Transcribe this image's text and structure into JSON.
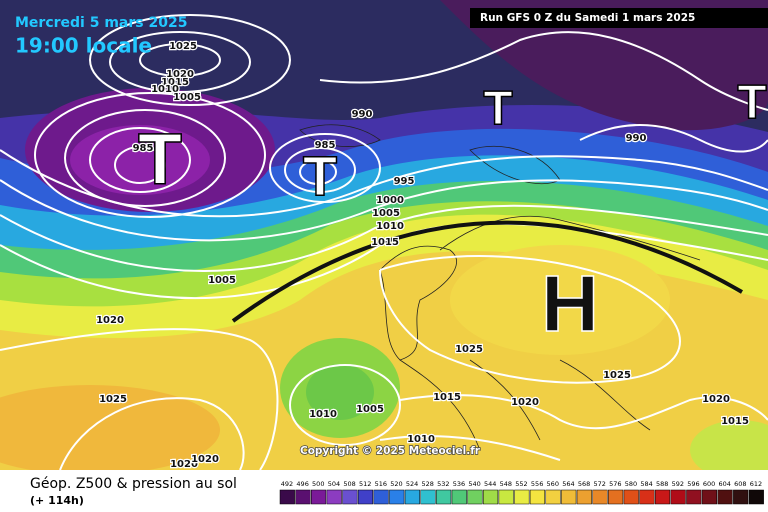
{
  "header": {
    "date": "Mercredi 5 mars 2025",
    "time": "19:00 locale",
    "run": "Run GFS 0 Z du Samedi 1 mars 2025"
  },
  "map": {
    "isobar_labels": [
      "1025",
      "1020",
      "1015",
      "1010",
      "1005",
      "990",
      "985",
      "985",
      "995",
      "1000",
      "1005",
      "1010",
      "1015",
      "1005",
      "1020",
      "1025",
      "1025",
      "1010",
      "1005",
      "1015",
      "1020",
      "1025",
      "1020",
      "1015",
      "1010",
      "990",
      "1020",
      "1020"
    ],
    "systems": [
      "T",
      "T",
      "T",
      "T",
      "H"
    ],
    "copyright": "Copyright © 2025 Meteociel.fr"
  },
  "legend": {
    "title": "Géop. Z500 & pression au sol",
    "lead": "(+ 114h)",
    "scale": [
      492,
      496,
      500,
      504,
      508,
      512,
      516,
      520,
      524,
      528,
      532,
      536,
      540,
      544,
      548,
      552,
      556,
      560,
      564,
      568,
      572,
      576,
      580,
      584,
      588,
      592,
      596,
      600,
      604,
      608,
      612
    ]
  }
}
